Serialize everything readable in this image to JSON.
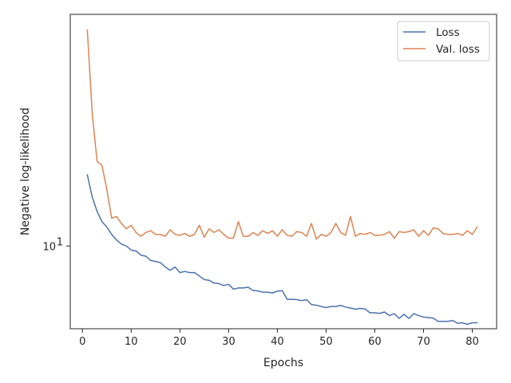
{
  "chart_data": {
    "type": "line",
    "title": "",
    "xlabel": "Epochs",
    "ylabel": "Negative log-likelihood",
    "yscale": "log",
    "xlim": [
      -2.5,
      85.0
    ],
    "ylim": [
      6.6,
      32.0
    ],
    "x_ticks": [
      0,
      10,
      20,
      30,
      40,
      50,
      60,
      70,
      80
    ],
    "y_ticks": [
      {
        "value": 10,
        "base": "10",
        "exp": "1"
      }
    ],
    "grid": false,
    "legend_position": "top-right",
    "series": [
      {
        "name": "Loss",
        "color": "#4c72b0",
        "x": [
          1,
          2,
          3,
          4,
          5,
          6,
          7,
          8,
          9,
          10,
          11,
          12,
          13,
          14,
          15,
          16,
          17,
          18,
          19,
          20,
          21,
          22,
          23,
          24,
          25,
          26,
          27,
          28,
          29,
          30,
          31,
          32,
          33,
          34,
          35,
          36,
          37,
          38,
          39,
          40,
          41,
          42,
          43,
          44,
          45,
          46,
          47,
          48,
          49,
          50,
          51,
          52,
          53,
          54,
          55,
          56,
          57,
          58,
          59,
          60,
          61,
          62,
          63,
          64,
          65,
          66,
          67,
          68,
          69,
          70,
          71,
          72,
          73,
          74,
          75,
          76,
          77,
          78,
          79,
          80,
          81
        ],
        "values": [
          14.3,
          12.8,
          11.9,
          11.3,
          11.0,
          10.6,
          10.3,
          10.1,
          10.0,
          9.8,
          9.75,
          9.55,
          9.5,
          9.3,
          9.25,
          9.2,
          9.0,
          8.85,
          9.0,
          8.75,
          8.8,
          8.75,
          8.75,
          8.6,
          8.45,
          8.42,
          8.3,
          8.28,
          8.2,
          8.25,
          8.05,
          8.1,
          8.1,
          8.13,
          8.0,
          7.98,
          7.93,
          7.93,
          7.9,
          7.97,
          7.99,
          7.65,
          7.65,
          7.64,
          7.6,
          7.64,
          7.45,
          7.43,
          7.38,
          7.34,
          7.38,
          7.38,
          7.42,
          7.36,
          7.32,
          7.28,
          7.31,
          7.29,
          7.15,
          7.15,
          7.13,
          7.18,
          7.05,
          7.12,
          6.95,
          7.1,
          6.95,
          7.12,
          7.05,
          7.0,
          6.98,
          6.96,
          6.85,
          6.85,
          6.85,
          6.88,
          6.78,
          6.8,
          6.75,
          6.8,
          6.8
        ]
      },
      {
        "name": "Val. loss",
        "color": "#dd8452",
        "x": [
          1,
          2,
          3,
          4,
          5,
          6,
          7,
          8,
          9,
          10,
          11,
          12,
          13,
          14,
          15,
          16,
          17,
          18,
          19,
          20,
          21,
          22,
          23,
          24,
          25,
          26,
          27,
          28,
          29,
          30,
          31,
          32,
          33,
          34,
          35,
          36,
          37,
          38,
          39,
          40,
          41,
          42,
          43,
          44,
          45,
          46,
          47,
          48,
          49,
          50,
          51,
          52,
          53,
          54,
          55,
          56,
          57,
          58,
          59,
          60,
          61,
          62,
          63,
          64,
          65,
          66,
          67,
          68,
          69,
          70,
          71,
          72,
          73,
          74,
          75,
          76,
          77,
          78,
          79,
          80,
          81
        ],
        "values": [
          29.6,
          19.5,
          15.3,
          15.0,
          13.3,
          11.5,
          11.6,
          11.2,
          10.9,
          11.1,
          10.7,
          10.5,
          10.7,
          10.8,
          10.6,
          10.6,
          10.5,
          10.85,
          10.6,
          10.55,
          10.65,
          10.5,
          10.6,
          11.1,
          10.45,
          10.9,
          10.7,
          10.85,
          10.6,
          10.4,
          10.4,
          11.3,
          10.5,
          10.5,
          10.7,
          10.55,
          10.8,
          10.65,
          10.8,
          10.5,
          10.85,
          10.55,
          10.5,
          10.75,
          10.7,
          10.5,
          11.2,
          10.35,
          10.6,
          10.5,
          10.7,
          11.2,
          10.7,
          10.55,
          11.6,
          10.5,
          10.65,
          10.6,
          10.7,
          10.55,
          10.55,
          10.6,
          10.75,
          10.4,
          10.75,
          10.7,
          10.75,
          10.85,
          10.5,
          10.8,
          10.55,
          10.95,
          10.9,
          10.65,
          10.6,
          10.6,
          10.65,
          10.55,
          10.8,
          10.6,
          11.0
        ]
      }
    ]
  }
}
